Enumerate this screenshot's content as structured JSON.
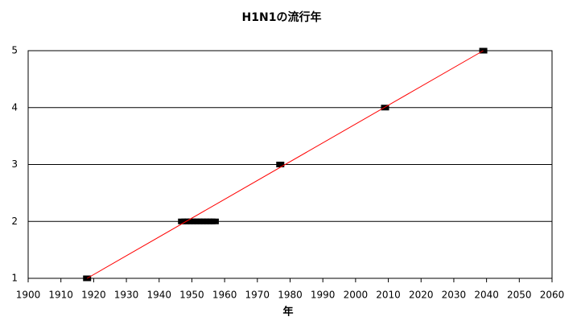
{
  "chart_data": {
    "type": "scatter",
    "title": "H1N1の流行年",
    "x_label": "年",
    "series": [
      {
        "color": "#000000",
        "mode": "markers",
        "x": [
          1918,
          1947,
          1948,
          1949,
          1950,
          1951,
          1952,
          1953,
          1954,
          1955,
          1956,
          1957,
          1977,
          2009,
          2039
        ],
        "values": [
          1,
          2,
          2,
          2,
          2,
          2,
          2,
          2,
          2,
          2,
          2,
          2,
          3,
          4,
          5
        ]
      },
      {
        "color": "#ff0000",
        "mode": "line",
        "x": [
          1918,
          2039
        ],
        "values": [
          1,
          5
        ]
      }
    ],
    "xlim": [
      1900,
      2060
    ],
    "xticks": [
      1900,
      1910,
      1920,
      1930,
      1940,
      1950,
      1960,
      1970,
      1980,
      1990,
      2000,
      2010,
      2020,
      2030,
      2040,
      2050,
      2060
    ],
    "ylim": [
      1,
      5
    ],
    "yticks": [
      1,
      2,
      3,
      4,
      5
    ],
    "grid": true
  }
}
